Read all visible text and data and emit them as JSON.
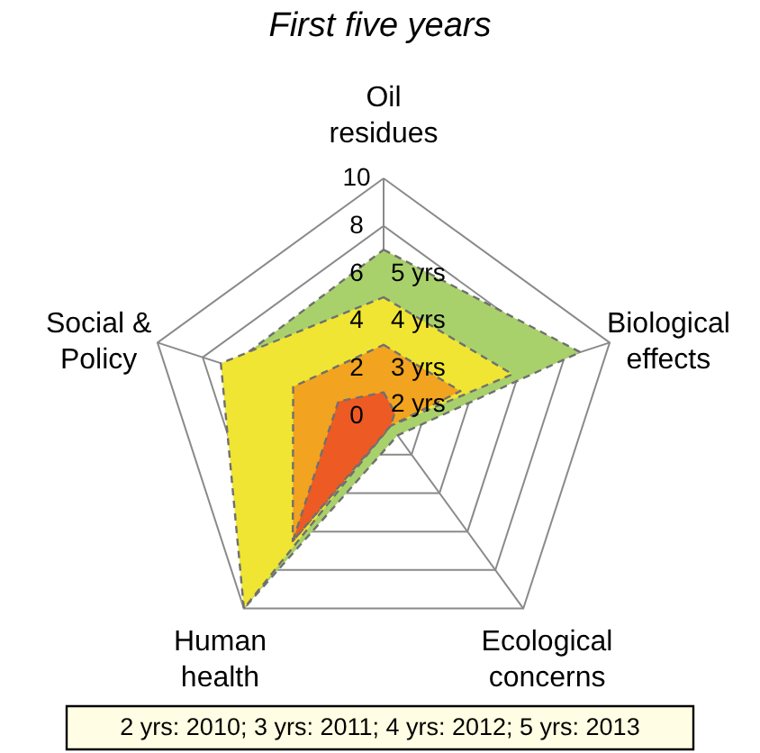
{
  "chart_data": {
    "type": "radar",
    "title": "First five years",
    "categories": [
      "Oil residues",
      "Biological effects",
      "Ecological concerns",
      "Human health",
      "Social & Policy"
    ],
    "ylim": [
      0,
      10
    ],
    "yticks": [
      0,
      2,
      4,
      6,
      8,
      10
    ],
    "grid": true,
    "line_style": "dashed",
    "series": [
      {
        "name": "5 yrs",
        "color": "#a9d16b",
        "values": [
          7,
          8.7,
          1,
          10,
          6.8
        ]
      },
      {
        "name": "4 yrs",
        "color": "#f0e532",
        "values": [
          5,
          5.7,
          0.5,
          10,
          7.2
        ]
      },
      {
        "name": "3 yrs",
        "color": "#f2a31f",
        "values": [
          3,
          3.4,
          0.5,
          6.5,
          4
        ]
      },
      {
        "name": "2 yrs",
        "color": "#ee5a24",
        "values": [
          1,
          0.5,
          0.5,
          6.5,
          2
        ]
      }
    ],
    "annotations": [
      "2 yrs: 2010; 3 yrs: 2011; 4 yrs: 2012; 5 yrs: 2013"
    ]
  }
}
